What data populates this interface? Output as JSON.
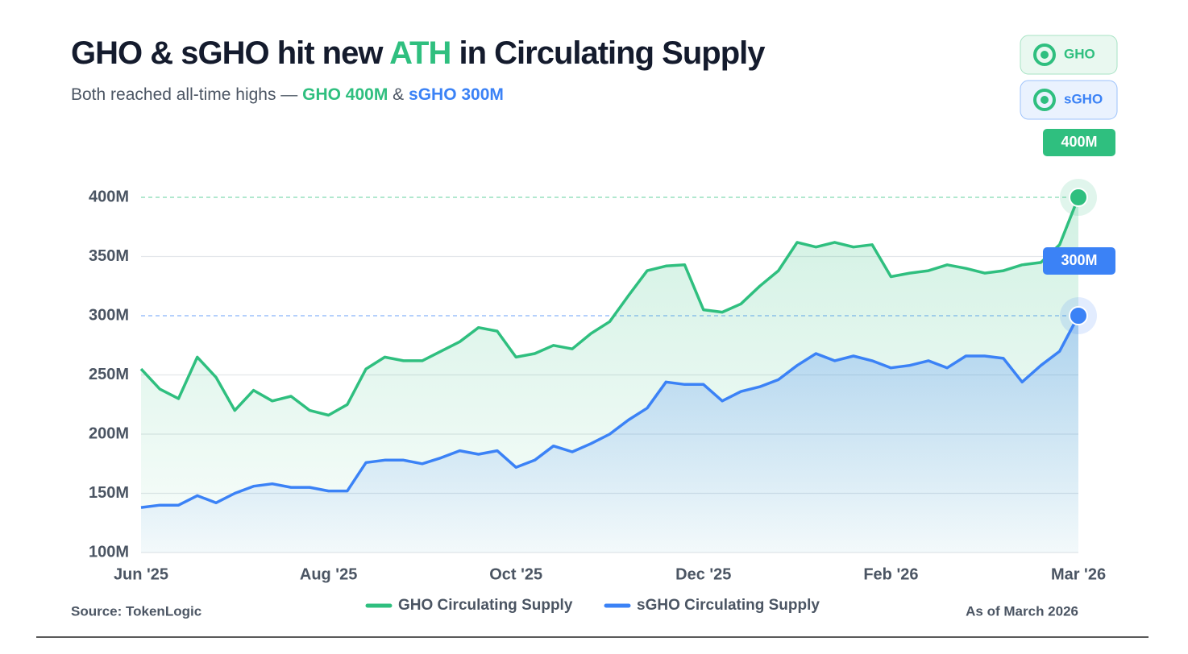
{
  "chart_data": {
    "type": "line",
    "title": [
      "GHO & sGHO hit new ",
      "ATH",
      " in Circulating Supply"
    ],
    "subtitle": [
      "Both reached all-time highs — ",
      "GHO 400M",
      " & ",
      "sGHO 300M"
    ],
    "legend_chips": [
      "GHO",
      "sGHO"
    ],
    "source": "Source: TokenLogic",
    "as_of": "As of March 2026",
    "categories": [
      "Jun '25",
      null,
      null,
      null,
      null,
      null,
      null,
      null,
      null,
      null,
      "Aug '25",
      null,
      null,
      null,
      null,
      null,
      null,
      null,
      null,
      null,
      "Oct '25",
      null,
      null,
      null,
      null,
      null,
      null,
      null,
      null,
      null,
      "Dec '25",
      null,
      null,
      null,
      null,
      null,
      null,
      null,
      null,
      null,
      "Feb '26",
      null,
      null,
      null,
      null,
      null,
      null,
      null,
      null,
      null,
      "Mar '26"
    ],
    "ylim": [
      100,
      400
    ],
    "yticks": [
      {
        "value": 100,
        "label": "100M"
      },
      {
        "value": 150,
        "label": "150M"
      },
      {
        "value": 200,
        "label": "200M"
      },
      {
        "value": 250,
        "label": "250M"
      },
      {
        "value": 300,
        "label": "300M"
      },
      {
        "value": 350,
        "label": "350M"
      },
      {
        "value": 400,
        "label": "400M"
      }
    ],
    "grid": true,
    "series": [
      {
        "name": "GHO Circulating Supply",
        "color": "#2fbf7f",
        "values": [
          255,
          238,
          230,
          265,
          248,
          220,
          237,
          228,
          232,
          220,
          216,
          225,
          255,
          265,
          262,
          262,
          270,
          278,
          290,
          287,
          265,
          268,
          275,
          272,
          285,
          295,
          317,
          338,
          342,
          343,
          305,
          303,
          310,
          325,
          338,
          362,
          358,
          362,
          358,
          360,
          333,
          336,
          338,
          343,
          340,
          336,
          338,
          343,
          345,
          360,
          400
        ],
        "value_labels": [
          null,
          null,
          null,
          null,
          null,
          null,
          null,
          null,
          null,
          null,
          null,
          null,
          null,
          null,
          null,
          null,
          null,
          null,
          null,
          null,
          null,
          null,
          null,
          null,
          null,
          null,
          null,
          null,
          null,
          null,
          null,
          null,
          null,
          null,
          null,
          null,
          null,
          null,
          null,
          null,
          null,
          null,
          null,
          null,
          null,
          null,
          null,
          null,
          null,
          null,
          "400M"
        ]
      },
      {
        "name": "sGHO Circulating Supply",
        "color": "#3b82f6",
        "values": [
          138,
          140,
          140,
          148,
          142,
          150,
          156,
          158,
          155,
          155,
          152,
          152,
          176,
          178,
          178,
          175,
          180,
          186,
          183,
          186,
          172,
          178,
          190,
          185,
          192,
          200,
          212,
          222,
          244,
          242,
          242,
          228,
          236,
          240,
          246,
          258,
          268,
          262,
          266,
          262,
          256,
          258,
          262,
          256,
          266,
          266,
          264,
          244,
          258,
          270,
          300
        ],
        "value_labels": [
          null,
          null,
          null,
          null,
          null,
          null,
          null,
          null,
          null,
          null,
          null,
          null,
          null,
          null,
          null,
          null,
          null,
          null,
          null,
          null,
          null,
          null,
          null,
          null,
          null,
          null,
          null,
          null,
          null,
          null,
          null,
          null,
          null,
          null,
          null,
          null,
          null,
          null,
          null,
          null,
          null,
          null,
          null,
          null,
          null,
          null,
          null,
          null,
          null,
          null,
          "300M"
        ]
      }
    ]
  }
}
